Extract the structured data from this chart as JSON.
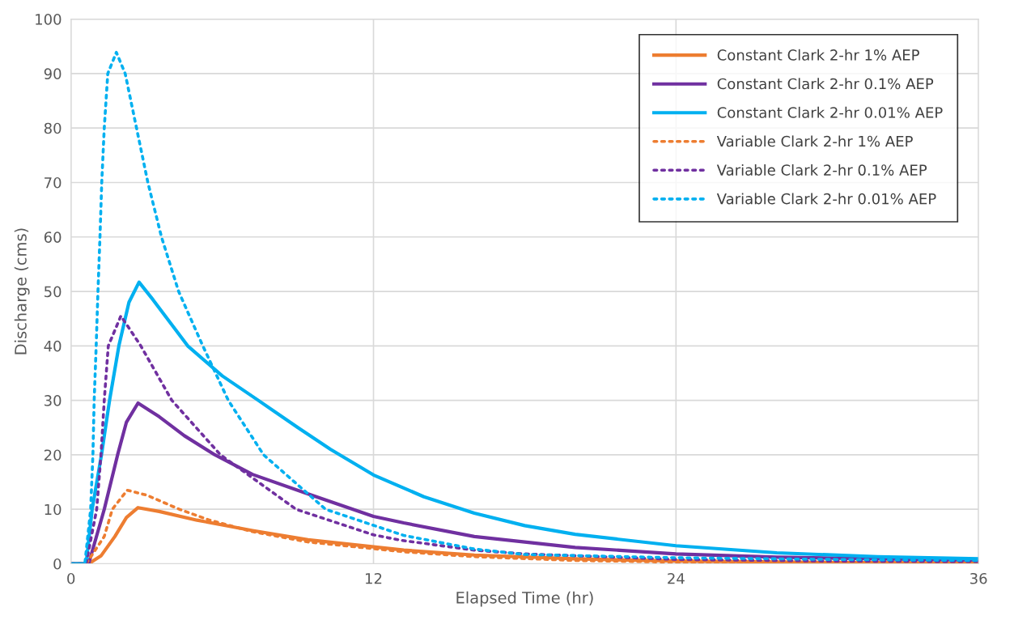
{
  "chart_data": {
    "type": "line",
    "xlabel": "Elapsed Time (hr)",
    "ylabel": "Discharge (cms)",
    "xlim": [
      0,
      36
    ],
    "xticks": [
      0,
      12,
      24,
      36
    ],
    "ylim": [
      0,
      100
    ],
    "yticks": [
      0,
      10,
      20,
      30,
      40,
      50,
      60,
      70,
      80,
      90,
      100
    ],
    "grid": true,
    "legend": "top right",
    "marker": "none",
    "series": [
      {
        "name": "Constant Clark 2-hr 1% AEP",
        "color": "#ed7d31",
        "line_style": "solid",
        "x": [
          0,
          0.7,
          1.2,
          1.74,
          2.2,
          2.66,
          3.5,
          5,
          7.2,
          9.4,
          13.2,
          16,
          20,
          24,
          30,
          36
        ],
        "values": [
          0,
          0,
          1.5,
          5,
          8.5,
          10.3,
          9.6,
          8,
          6.1,
          4.4,
          2.5,
          1.6,
          0.9,
          0.5,
          0.25,
          0.15
        ]
      },
      {
        "name": "Constant Clark 2-hr 0.1% AEP",
        "color": "#7030a0",
        "line_style": "solid",
        "x": [
          0,
          0.7,
          1.32,
          1.85,
          2.2,
          2.66,
          3.5,
          4.5,
          5.71,
          7.2,
          9.36,
          12,
          13.2,
          16,
          18,
          20,
          24,
          28,
          32,
          36
        ],
        "values": [
          0,
          0,
          10,
          20,
          26,
          29.5,
          27,
          23.5,
          20,
          16.4,
          12.9,
          8.7,
          7.5,
          5,
          4,
          3,
          1.8,
          1.2,
          0.9,
          0.7
        ]
      },
      {
        "name": "Constant Clark 2-hr 0.01% AEP",
        "color": "#00b0f0",
        "line_style": "solid",
        "x": [
          0,
          0.6,
          0.84,
          1.21,
          1.53,
          1.9,
          2.3,
          2.7,
          3.25,
          4.63,
          6,
          7.43,
          9,
          10.3,
          12,
          14,
          16,
          18,
          20,
          24,
          28,
          32,
          36
        ],
        "values": [
          0,
          0,
          10,
          20,
          30,
          40,
          48,
          51.7,
          48.5,
          40,
          34.5,
          30,
          25,
          21,
          16.3,
          12.3,
          9.3,
          7,
          5.4,
          3.3,
          2,
          1.3,
          0.9
        ]
      },
      {
        "name": "Variable Clark 2-hr 1% AEP",
        "color": "#ed7d31",
        "line_style": "dotted",
        "x": [
          0,
          0.6,
          1.32,
          1.64,
          2.23,
          3,
          4.3,
          5.5,
          7.2,
          9.4,
          13.2,
          16,
          20,
          24,
          30,
          36
        ],
        "values": [
          0,
          0,
          5,
          10,
          13.5,
          12.6,
          10,
          8,
          5.9,
          4,
          2.2,
          1.3,
          0.6,
          0.3,
          0.15,
          0.1
        ]
      },
      {
        "name": "Variable Clark 2-hr 0.1% AEP",
        "color": "#7030a0",
        "line_style": "dotted",
        "x": [
          0,
          0.6,
          1.02,
          1.19,
          1.32,
          1.48,
          1.98,
          2.77,
          4.0,
          5.93,
          8.93,
          12,
          13.1,
          16,
          18,
          24,
          30,
          36
        ],
        "values": [
          0,
          0,
          10,
          20,
          30,
          40,
          45.5,
          40,
          30,
          20,
          10,
          5.3,
          4.3,
          2.5,
          1.8,
          0.8,
          0.5,
          0.4
        ]
      },
      {
        "name": "Variable Clark 2-hr 0.01% AEP",
        "color": "#00b0f0",
        "line_style": "dotted",
        "x": [
          0,
          0.55,
          0.78,
          0.87,
          0.92,
          1.0,
          1.07,
          1.15,
          1.22,
          1.32,
          1.46,
          1.8,
          2.15,
          2.6,
          3.05,
          3.59,
          4.27,
          5.23,
          6.24,
          7.64,
          10.1,
          13.2,
          16,
          18,
          24,
          30,
          36
        ],
        "values": [
          0,
          0,
          10,
          20,
          30,
          40,
          50,
          60,
          70,
          80,
          90,
          93.9,
          90,
          80,
          70,
          60,
          50,
          40,
          30,
          20,
          10,
          5.2,
          2.7,
          1.7,
          1.1,
          0.8,
          0.6
        ]
      }
    ]
  }
}
